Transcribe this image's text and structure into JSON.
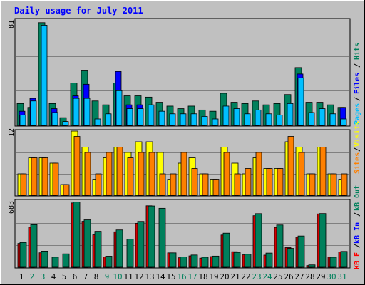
{
  "chart_data": [
    {
      "type": "bar",
      "title": "Daily usage for July 2011",
      "categories": [
        "1",
        "2",
        "3",
        "4",
        "5",
        "6",
        "7",
        "8",
        "9",
        "10",
        "11",
        "12",
        "13",
        "14",
        "15",
        "16",
        "17",
        "18",
        "19",
        "20",
        "21",
        "22",
        "23",
        "24",
        "25",
        "26",
        "27",
        "28",
        "29",
        "30",
        "31"
      ],
      "weekend_days": [
        "2",
        "3",
        "9",
        "10",
        "16",
        "17",
        "23",
        "24",
        "30",
        "31"
      ],
      "ymax_label": "81",
      "ylim": [
        0,
        81
      ],
      "grid": true,
      "series": [
        {
          "name": "Hits",
          "color": "#00805c",
          "values": [
            17,
            14,
            80,
            17,
            6,
            33,
            43,
            19,
            16,
            33,
            23,
            23,
            22,
            18,
            15,
            13,
            15,
            12,
            11,
            25,
            18,
            17,
            19,
            16,
            17,
            24,
            45,
            18,
            18,
            16,
            14
          ]
        },
        {
          "name": "Files",
          "color": "#0000ff",
          "values": [
            11,
            21,
            0,
            13,
            0,
            23,
            32,
            0,
            0,
            42,
            16,
            16,
            0,
            0,
            0,
            0,
            0,
            0,
            0,
            0,
            0,
            0,
            0,
            0,
            0,
            0,
            40,
            0,
            0,
            0,
            14
          ]
        },
        {
          "name": "Pages",
          "color": "#00bfff",
          "values": [
            8,
            19,
            78,
            10,
            3,
            21,
            21,
            5,
            9,
            27,
            13,
            13,
            16,
            11,
            9,
            9,
            9,
            7,
            5,
            15,
            13,
            9,
            12,
            9,
            8,
            17,
            37,
            10,
            13,
            9,
            5
          ]
        }
      ],
      "right_label_order": [
        "Pages",
        "/",
        "Files",
        "/",
        "Hits"
      ]
    },
    {
      "type": "bar",
      "categories": [
        "1",
        "2",
        "3",
        "4",
        "5",
        "6",
        "7",
        "8",
        "9",
        "10",
        "11",
        "12",
        "13",
        "14",
        "15",
        "16",
        "17",
        "18",
        "19",
        "20",
        "21",
        "22",
        "23",
        "24",
        "25",
        "26",
        "27",
        "28",
        "29",
        "30",
        "31"
      ],
      "ymax_label": "12",
      "ylim": [
        0,
        12
      ],
      "grid": true,
      "series": [
        {
          "name": "Visits",
          "color": "#ffff00",
          "values": [
            4,
            7,
            7,
            6,
            2,
            12,
            9,
            3,
            7,
            9,
            8,
            10,
            10,
            8,
            3,
            6,
            7,
            4,
            3,
            9,
            6,
            4,
            7,
            5,
            5,
            10,
            9,
            4,
            9,
            4,
            3
          ]
        },
        {
          "name": "Sites",
          "color": "#ff8000",
          "values": [
            4,
            7,
            7,
            6,
            2,
            11,
            8,
            4,
            8,
            9,
            7,
            8,
            8,
            4,
            4,
            8,
            5,
            4,
            3,
            8,
            4,
            5,
            8,
            5,
            5,
            11,
            8,
            4,
            9,
            4,
            4
          ]
        }
      ],
      "right_label_order": [
        "KB F",
        "/",
        "kB In",
        "/",
        "kB Out",
        "Sites",
        "/",
        "Visits"
      ]
    },
    {
      "type": "bar",
      "categories": [
        "1",
        "2",
        "3",
        "4",
        "5",
        "6",
        "7",
        "8",
        "9",
        "10",
        "11",
        "12",
        "13",
        "14",
        "15",
        "16",
        "17",
        "18",
        "19",
        "20",
        "21",
        "22",
        "23",
        "24",
        "25",
        "26",
        "27",
        "28",
        "29",
        "30",
        "31"
      ],
      "ymax_label": "683",
      "ylim": [
        0,
        683
      ],
      "grid": true,
      "series": [
        {
          "name": "KB F",
          "color": "#ff0000",
          "values": [
            0,
            0,
            0,
            0,
            0,
            0,
            0,
            0,
            0,
            0,
            0,
            0,
            0,
            0,
            0,
            0,
            0,
            0,
            0,
            0,
            0,
            0,
            0,
            0,
            0,
            0,
            0,
            0,
            0,
            0,
            0
          ]
        },
        {
          "name": "kB In",
          "color": "#0000ff",
          "values": [
            0,
            0,
            0,
            0,
            0,
            0,
            0,
            0,
            0,
            0,
            0,
            0,
            0,
            0,
            0,
            0,
            0,
            0,
            0,
            0,
            0,
            0,
            0,
            0,
            0,
            0,
            0,
            0,
            0,
            0,
            0
          ]
        },
        {
          "name": "kB Out",
          "color": "#00805c",
          "values": [
            255,
            438,
            166,
            104,
            138,
            671,
            488,
            370,
            114,
            384,
            289,
            472,
            631,
            607,
            148,
            107,
            126,
            103,
            115,
            351,
            153,
            134,
            552,
            146,
            435,
            194,
            322,
            24,
            553,
            103,
            163
          ]
        },
        {
          "name": "kB In red",
          "color": "#d40000",
          "values": [
            245,
            412,
            149,
            0,
            0,
            662,
            473,
            334,
            106,
            365,
            0,
            452,
            633,
            0,
            148,
            98,
            117,
            94,
            110,
            332,
            160,
            128,
            531,
            125,
            410,
            202,
            310,
            17,
            549,
            105,
            157
          ]
        }
      ]
    }
  ],
  "colors": {
    "background": "#c0c0c0",
    "title": "#0000ff",
    "weekday_label": "#000000",
    "weekend_label": "#00805c",
    "grid": "#808080"
  }
}
